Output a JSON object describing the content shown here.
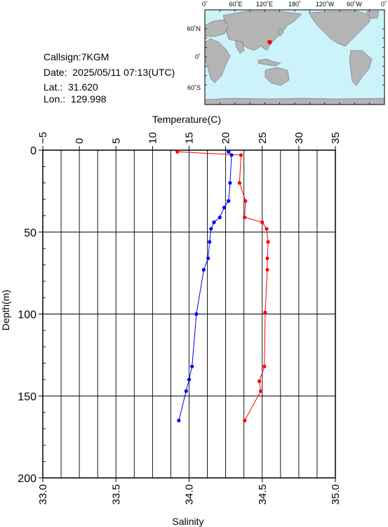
{
  "station": {
    "callsign": "Callsign:7KGM",
    "date": "Date:  2025/05/11 07:13(UTC)",
    "lat": "Lat.:  31.620",
    "lon": "Lon.:  129.998"
  },
  "map": {
    "top_labels": [
      "0˚",
      "60˚E",
      "120˚E",
      "180˚",
      "120˚W",
      "60˚W",
      "0˚"
    ],
    "left_labels": [
      "60˚N",
      "0˚",
      "60˚S"
    ],
    "ocean_color": "#cdf3fa",
    "land_color": "#b4b4b4",
    "marker_color": "#ff0000",
    "marker": {
      "lat": 31.62,
      "lon": 129.998
    }
  },
  "chart_data": {
    "type": "line",
    "top_axis_label": "Temperature(C)",
    "bottom_axis_label": "Salinity",
    "left_axis_label": "Depth(m)",
    "depth_range": [
      0,
      200
    ],
    "temperature_range": [
      -5,
      35
    ],
    "salinity_range": [
      33.0,
      35.0
    ],
    "depth_ticks": [
      "0",
      "50",
      "100",
      "150",
      "200"
    ],
    "temperature_ticks": [
      "−5",
      "0",
      "5",
      "10",
      "15",
      "20",
      "25",
      "30",
      "35"
    ],
    "salinity_ticks": [
      "33.0",
      "33.5",
      "34.0",
      "34.5",
      "35.0"
    ],
    "grid": true,
    "series": [
      {
        "quantity": "Temperature",
        "axis": "top",
        "color": "#ff0000",
        "depth": [
          1,
          3,
          20,
          31,
          41,
          44,
          48,
          56,
          66,
          73,
          99,
          132,
          141,
          147,
          165
        ],
        "values": [
          13.4,
          22.1,
          21.9,
          22.7,
          22.6,
          25.0,
          25.6,
          25.8,
          25.7,
          25.7,
          25.4,
          25.3,
          24.6,
          24.8,
          22.6
        ]
      },
      {
        "quantity": "Salinity",
        "axis": "bottom",
        "color": "#0000ff",
        "depth": [
          1,
          3,
          20,
          31,
          35,
          41,
          44,
          48,
          56,
          66,
          73,
          100,
          132,
          140,
          147,
          165
        ],
        "values": [
          34.27,
          34.29,
          34.28,
          34.27,
          34.24,
          34.21,
          34.17,
          34.15,
          34.14,
          34.13,
          34.1,
          34.05,
          34.02,
          34.0,
          33.98,
          33.93
        ]
      }
    ]
  }
}
